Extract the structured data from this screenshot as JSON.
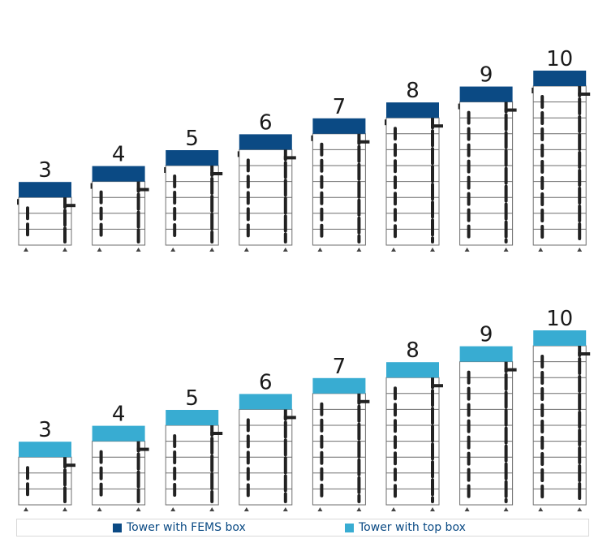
{
  "colors": {
    "fems_box": "#0b4a84",
    "top_box": "#38acd2",
    "frame": "#6e6e6e",
    "bar": "#222222",
    "text": "#1a1a1a"
  },
  "rows": [
    {
      "variant": "fems",
      "towers": [
        {
          "modules": 3,
          "label": "3"
        },
        {
          "modules": 4,
          "label": "4"
        },
        {
          "modules": 5,
          "label": "5"
        },
        {
          "modules": 6,
          "label": "6"
        },
        {
          "modules": 7,
          "label": "7"
        },
        {
          "modules": 8,
          "label": "8"
        },
        {
          "modules": 9,
          "label": "9"
        },
        {
          "modules": 10,
          "label": "10"
        }
      ]
    },
    {
      "variant": "top",
      "towers": [
        {
          "modules": 3,
          "label": "3"
        },
        {
          "modules": 4,
          "label": "4"
        },
        {
          "modules": 5,
          "label": "5"
        },
        {
          "modules": 6,
          "label": "6"
        },
        {
          "modules": 7,
          "label": "7"
        },
        {
          "modules": 8,
          "label": "8"
        },
        {
          "modules": 9,
          "label": "9"
        },
        {
          "modules": 10,
          "label": "10"
        }
      ]
    }
  ],
  "legend": {
    "fems_label": "Tower with FEMS box",
    "top_label": "Tower with top box"
  }
}
